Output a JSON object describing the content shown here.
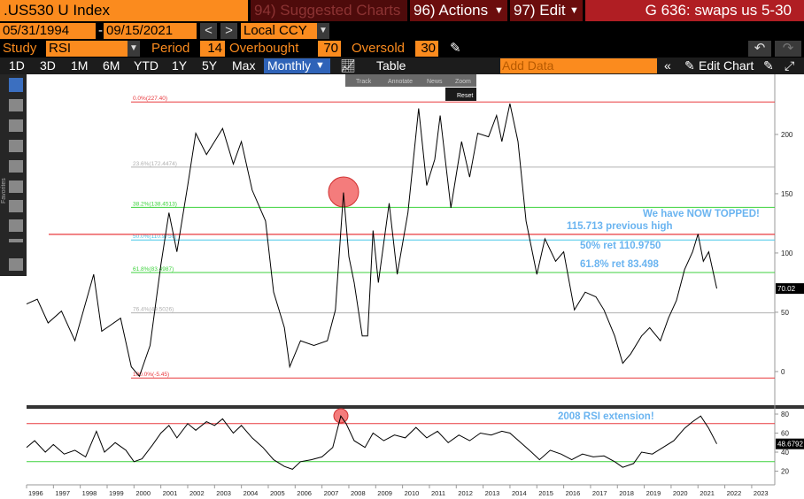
{
  "header": {
    "ticker": ".US530 U Index",
    "suggested": "94) Suggested Charts",
    "actions": "96) Actions",
    "edit": "97) Edit",
    "function": "G 636: swaps us 5-30"
  },
  "range": {
    "start": "05/31/1994",
    "dash": "-",
    "end": "09/15/2021",
    "currency": "Local CCY"
  },
  "study": {
    "label": "Study",
    "name": "RSI",
    "period_label": "Period",
    "period": 14,
    "overbought_label": "Overbought",
    "overbought": 70,
    "oversold_label": "Oversold",
    "oversold": 30
  },
  "periods": [
    "1D",
    "3D",
    "1M",
    "6M",
    "YTD",
    "1Y",
    "5Y",
    "Max"
  ],
  "frequency": "Monthly",
  "table": "Table",
  "add_data": "Add Data",
  "edit_chart": "Edit Chart",
  "favorites": "Favorites",
  "popup": [
    "Track",
    "Annotate",
    "News",
    "Zoom",
    "Reset"
  ],
  "chart_data": [
    {
      "type": "line",
      "color": "#000000",
      "x": [
        1996.0,
        1996.4,
        1996.8,
        1997.3,
        1997.8,
        1998.5,
        1998.8,
        1999.5,
        1999.9,
        2000.2,
        2000.6,
        2001.0,
        2001.3,
        2001.6,
        2002.0,
        2002.3,
        2002.7,
        2003.0,
        2003.3,
        2003.7,
        2004.0,
        2004.4,
        2004.9,
        2005.2,
        2005.6,
        2005.8,
        2006.2,
        2006.7,
        2007.2,
        2007.5,
        2007.8,
        2008.0,
        2008.2,
        2008.5,
        2008.7,
        2008.9,
        2009.1,
        2009.5,
        2009.8,
        2010.2,
        2010.6,
        2010.9,
        2011.2,
        2011.4,
        2011.8,
        2012.2,
        2012.5,
        2012.8,
        2013.2,
        2013.5,
        2013.7,
        2014.0,
        2014.3,
        2014.6,
        2015.0,
        2015.3,
        2015.7,
        2016.0,
        2016.4,
        2016.8,
        2017.2,
        2017.5,
        2017.9,
        2018.2,
        2018.5,
        2018.9,
        2019.2,
        2019.6,
        2019.9,
        2020.2,
        2020.5,
        2020.8,
        2021.0,
        2021.2,
        2021.4,
        2021.7
      ],
      "values": [
        57,
        61,
        41,
        51,
        26,
        82,
        34,
        45,
        4,
        -4,
        22,
        90,
        134,
        101,
        157,
        201,
        183,
        194,
        205,
        175,
        194,
        153,
        127,
        67,
        37,
        4,
        26,
        22,
        26,
        52,
        151,
        97,
        75,
        30,
        30,
        119,
        75,
        142,
        82,
        134,
        222,
        157,
        179,
        216,
        138,
        194,
        164,
        201,
        198,
        216,
        194,
        226,
        194,
        127,
        82,
        112,
        93,
        101,
        52,
        67,
        63,
        52,
        30,
        7,
        15,
        30,
        37,
        26,
        45,
        60,
        86,
        101,
        116,
        93,
        101,
        70.02
      ],
      "xlim": [
        1996.0,
        2023.86
      ],
      "ylim": [
        -28.4,
        250.7
      ],
      "yticks": [
        0,
        50,
        100,
        150,
        200
      ],
      "levels": [
        {
          "value": 227.4,
          "label": "0.0%(227.40)",
          "color": "#e8383d"
        },
        {
          "value": 172.4474,
          "label": "23.6%(172.4474)",
          "color": "#b0b0b0"
        },
        {
          "value": 138.4513,
          "label": "38.2%(138.4513)",
          "color": "#3cd23c"
        },
        {
          "value": 110.975,
          "label": "50.0%(110.9750)",
          "color": "#4cc8e8"
        },
        {
          "value": 83.4987,
          "label": "61.8%(83.4987)",
          "color": "#3cd23c"
        },
        {
          "value": 49.5026,
          "label": "76.4%(49.5026)",
          "color": "#b0b0b0"
        },
        {
          "value": -5.45,
          "label": "100.0%(-5.45)",
          "color": "#e8383d"
        }
      ],
      "horizontal_lines": [
        {
          "value": 115.713,
          "color": "#e8383d"
        }
      ],
      "annotations": [
        "We have NOW TOPPED!",
        "115.713 previous high",
        "50% ret 110.9750",
        "61.8% ret 83.498"
      ],
      "annotation_color": "#6ab4f0"
    },
    {
      "type": "line",
      "color": "#000000",
      "x": [
        1996.0,
        1996.3,
        1996.7,
        1997.0,
        1997.4,
        1997.8,
        1998.2,
        1998.6,
        1998.9,
        1999.3,
        1999.7,
        2000.0,
        2000.3,
        2000.7,
        2001.0,
        2001.3,
        2001.6,
        2002.0,
        2002.3,
        2002.7,
        2003.0,
        2003.3,
        2003.7,
        2004.0,
        2004.4,
        2004.8,
        2005.2,
        2005.6,
        2005.9,
        2006.2,
        2006.6,
        2007.0,
        2007.4,
        2007.7,
        2007.9,
        2008.2,
        2008.6,
        2008.9,
        2009.3,
        2009.7,
        2010.1,
        2010.5,
        2010.9,
        2011.3,
        2011.7,
        2012.1,
        2012.5,
        2012.9,
        2013.3,
        2013.7,
        2014.0,
        2014.4,
        2014.8,
        2015.1,
        2015.5,
        2015.9,
        2016.3,
        2016.7,
        2017.1,
        2017.5,
        2017.9,
        2018.2,
        2018.6,
        2018.9,
        2019.3,
        2019.7,
        2020.1,
        2020.5,
        2020.8,
        2021.1,
        2021.4,
        2021.7
      ],
      "values": [
        45,
        52,
        40,
        48,
        38,
        42,
        35,
        62,
        40,
        50,
        42,
        30,
        33,
        48,
        60,
        68,
        55,
        70,
        63,
        72,
        68,
        75,
        60,
        68,
        55,
        45,
        32,
        25,
        22,
        30,
        32,
        35,
        45,
        78,
        70,
        52,
        45,
        60,
        52,
        58,
        55,
        66,
        55,
        62,
        50,
        58,
        52,
        60,
        58,
        62,
        60,
        50,
        40,
        32,
        42,
        38,
        32,
        38,
        35,
        36,
        30,
        24,
        28,
        40,
        38,
        45,
        52,
        65,
        72,
        78,
        65,
        48.6792
      ],
      "xlim": [
        1996.0,
        2023.86
      ],
      "ylim": [
        8.4,
        85.6
      ],
      "yticks": [
        20,
        40,
        60,
        80
      ],
      "xticks": [
        1996,
        1997,
        1998,
        1999,
        2000,
        2001,
        2002,
        2003,
        2004,
        2005,
        2006,
        2007,
        2008,
        2009,
        2010,
        2011,
        2012,
        2013,
        2014,
        2015,
        2016,
        2017,
        2018,
        2019,
        2020,
        2021,
        2022,
        2023
      ],
      "annotations": [
        "2008 RSI extension!"
      ],
      "annotation_color": "#6ab4f0"
    }
  ]
}
